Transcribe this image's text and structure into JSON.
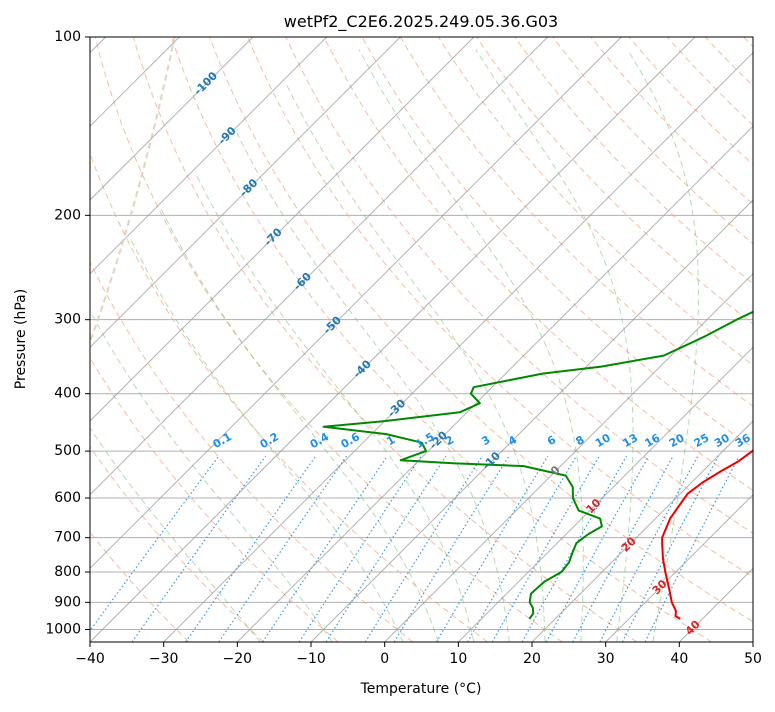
{
  "chart_data": {
    "type": "line",
    "chart_kind": "skew-T log-P diagram",
    "title": "wetPf2_C2E6.2025.249.05.36.G03",
    "xlabel": "Temperature (°C)",
    "ylabel": "Pressure (hPa)",
    "xlim": [
      -40,
      50
    ],
    "ylim": [
      1050,
      100
    ],
    "x_ticks": [
      -40,
      -30,
      -20,
      -10,
      0,
      10,
      20,
      30,
      40,
      50
    ],
    "x_tick_labels": [
      "−40",
      "−30",
      "−20",
      "−10",
      "0",
      "10",
      "20",
      "30",
      "40",
      "50"
    ],
    "y_ticks": [
      100,
      200,
      300,
      400,
      500,
      600,
      700,
      800,
      900,
      1000
    ],
    "y_tick_labels": [
      "100",
      "200",
      "300",
      "400",
      "500",
      "600",
      "700",
      "800",
      "900",
      "1000"
    ],
    "grid": true,
    "colors": {
      "temperature": "#ee0000",
      "dewpoint": "#008800",
      "dry_adiabat": "#f4a582",
      "moist_adiabat": "#66bb66",
      "mixing_ratio": "#1f8fe8",
      "isotherm": "#999999",
      "isotherm_label_cold": "#1f77b4",
      "isotherm_label_warm": "#d62728",
      "isotherm_label_zero": "#777777",
      "grid": "#b0b0b0",
      "ccl_curve": "#e0c8a8"
    },
    "series": [
      {
        "name": "Temperature",
        "points": [
          [
            37,
            960
          ],
          [
            36,
            950
          ],
          [
            35.3,
            930
          ],
          [
            33.6,
            900
          ],
          [
            31.2,
            850
          ],
          [
            28.6,
            800
          ],
          [
            26.5,
            760
          ],
          [
            24.5,
            720
          ],
          [
            23.5,
            700
          ],
          [
            22,
            650
          ],
          [
            21.5,
            620
          ],
          [
            21,
            590
          ],
          [
            21.5,
            565
          ],
          [
            22.5,
            540
          ],
          [
            23.5,
            520
          ],
          [
            24,
            500
          ],
          [
            23.6,
            470
          ],
          [
            23,
            450
          ],
          [
            22.8,
            420
          ],
          [
            23,
            400
          ],
          [
            22.5,
            370
          ],
          [
            20,
            340
          ],
          [
            16.5,
            310
          ],
          [
            12.5,
            280
          ],
          [
            11,
            260
          ],
          [
            10.5,
            250
          ],
          [
            9,
            235
          ],
          [
            7.5,
            220
          ],
          [
            6,
            205
          ],
          [
            4.5,
            185
          ],
          [
            3,
            165
          ],
          [
            1.2,
            145
          ],
          [
            0,
            133
          ],
          [
            -0.5,
            125
          ],
          [
            -0.8,
            118
          ],
          [
            0,
            110
          ],
          [
            1,
            104
          ],
          [
            1.8,
            100
          ]
        ]
      },
      {
        "name": "Dewpoint",
        "points": [
          [
            16.5,
            960
          ],
          [
            16.3,
            940
          ],
          [
            15.5,
            920
          ],
          [
            14.3,
            900
          ],
          [
            13.3,
            870
          ],
          [
            13.5,
            830
          ],
          [
            14.5,
            800
          ],
          [
            14.2,
            770
          ],
          [
            13.3,
            740
          ],
          [
            12.6,
            715
          ],
          [
            13,
            690
          ],
          [
            13.8,
            670
          ],
          [
            12.5,
            650
          ],
          [
            8.5,
            630
          ],
          [
            6,
            600
          ],
          [
            4.5,
            575
          ],
          [
            2,
            550
          ],
          [
            -5,
            530
          ],
          [
            -15,
            524
          ],
          [
            -22.5,
            518
          ],
          [
            -20.3,
            500
          ],
          [
            -22,
            484
          ],
          [
            -28,
            468
          ],
          [
            -37.5,
            455
          ],
          [
            -30,
            445
          ],
          [
            -21,
            430
          ],
          [
            -19.5,
            415
          ],
          [
            -22,
            400
          ],
          [
            -22.5,
            390
          ],
          [
            -15,
            370
          ],
          [
            -8,
            360
          ],
          [
            -1,
            345
          ],
          [
            2,
            320
          ],
          [
            4,
            300
          ],
          [
            6,
            285
          ],
          [
            5,
            270
          ],
          [
            2.5,
            260
          ],
          [
            2.8,
            245
          ],
          [
            2,
            230
          ],
          [
            -1,
            215
          ],
          [
            -4.5,
            205
          ],
          [
            -4.5,
            195
          ],
          [
            -2.5,
            180
          ],
          [
            -1,
            165
          ],
          [
            -0.5,
            150
          ],
          [
            -0.8,
            135
          ],
          [
            -1.5,
            125
          ],
          [
            -2.2,
            117
          ],
          [
            -2.5,
            112
          ],
          [
            -2,
            107
          ],
          [
            -0.5,
            103
          ],
          [
            0.6,
            100
          ]
        ]
      }
    ],
    "isotherm_labels": [
      "-100",
      "-90",
      "-80",
      "-70",
      "-60",
      "-50",
      "-40",
      "-30",
      "-20",
      "-10",
      "0",
      "10",
      "20",
      "30",
      "40"
    ],
    "mixing_ratio_labels": [
      "0.1",
      "0.2",
      "0.4",
      "0.6",
      "1",
      "1.5",
      "2",
      "3",
      "4",
      "6",
      "8",
      "10",
      "13",
      "16",
      "20",
      "25",
      "30",
      "36"
    ],
    "dry_adiabats_theta_C": [
      -30,
      -20,
      -10,
      0,
      10,
      20,
      30,
      40,
      50,
      60,
      70,
      80,
      90,
      100,
      110,
      120,
      130,
      140,
      150,
      160,
      170,
      180,
      190,
      200
    ],
    "moist_adiabats_C": [
      -20,
      -10,
      0,
      5,
      10,
      15,
      20,
      25,
      30,
      35
    ],
    "mixing_ratio_values_gkg": [
      0.1,
      0.2,
      0.4,
      0.6,
      1,
      1.5,
      2,
      3,
      4,
      6,
      8,
      10,
      13,
      16,
      20,
      25,
      30,
      36
    ]
  }
}
